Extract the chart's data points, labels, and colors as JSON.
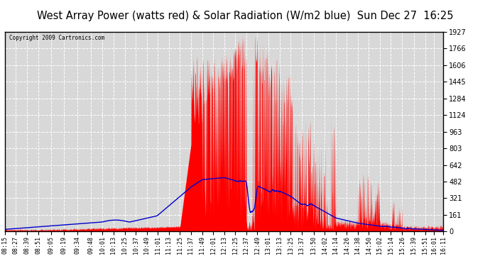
{
  "title": "West Array Power (watts red) & Solar Radiation (W/m2 blue)  Sun Dec 27  16:25",
  "copyright": "Copyright 2009 Cartronics.com",
  "y_ticks": [
    0.0,
    160.6,
    321.1,
    481.7,
    642.2,
    802.8,
    963.3,
    1123.9,
    1284.5,
    1445.0,
    1605.6,
    1766.1,
    1926.7
  ],
  "ylim": [
    0,
    1926.7
  ],
  "bg_color": "#ffffff",
  "plot_bg_color": "#d8d8d8",
  "grid_color": "#ffffff",
  "red_color": "#ff0000",
  "blue_color": "#0000cc",
  "title_bg": "#c0c0c0",
  "x_label_fontsize": 6.0,
  "title_fontsize": 10.5,
  "time_labels": [
    "08:15",
    "08:27",
    "08:39",
    "08:51",
    "09:05",
    "09:19",
    "09:34",
    "09:48",
    "10:01",
    "10:13",
    "10:25",
    "10:37",
    "10:49",
    "11:01",
    "11:13",
    "11:25",
    "11:37",
    "11:49",
    "12:01",
    "12:13",
    "12:25",
    "12:37",
    "12:49",
    "13:01",
    "13:13",
    "13:25",
    "13:37",
    "13:50",
    "14:02",
    "14:14",
    "14:26",
    "14:38",
    "14:50",
    "15:02",
    "15:14",
    "15:26",
    "15:39",
    "15:51",
    "16:01",
    "16:11"
  ]
}
